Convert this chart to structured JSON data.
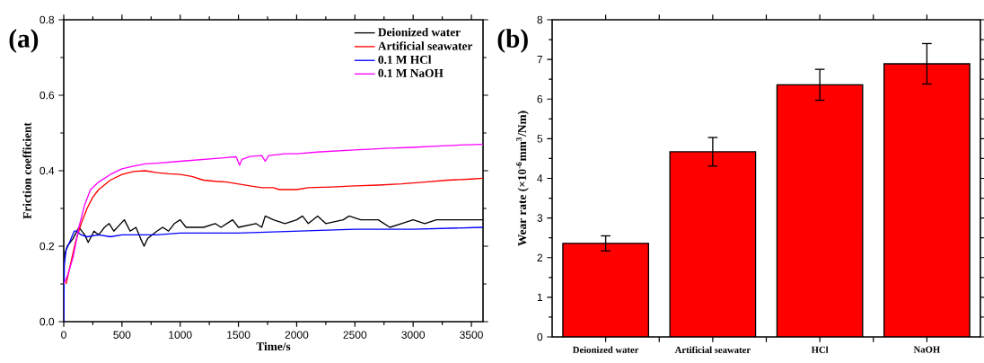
{
  "chart_data": [
    {
      "type": "line",
      "title": "(a)",
      "xlabel": "Time/s",
      "ylabel": "Friction coefficient",
      "xlim": [
        0,
        3600
      ],
      "ylim": [
        0,
        0.8
      ],
      "xticks": [
        0,
        500,
        1000,
        1500,
        2000,
        2500,
        3000,
        3500
      ],
      "yticks": [
        {
          "value": 0,
          "label": "0.0"
        },
        0.2,
        0.4,
        0.6,
        0.8
      ],
      "legend": "top right",
      "series": [
        {
          "name": "Deionized water",
          "color": "#000000",
          "x": [
            0,
            30,
            80,
            130,
            180,
            210,
            260,
            300,
            350,
            390,
            430,
            520,
            570,
            620,
            660,
            690,
            720,
            800,
            850,
            900,
            950,
            1000,
            1050,
            1100,
            1200,
            1300,
            1350,
            1450,
            1500,
            1650,
            1700,
            1730,
            1800,
            1900,
            2000,
            2050,
            2100,
            2180,
            2250,
            2400,
            2450,
            2550,
            2700,
            2800,
            2900,
            3000,
            3100,
            3200,
            3300,
            3400,
            3500,
            3600
          ],
          "values": [
            0.17,
            0.2,
            0.22,
            0.25,
            0.23,
            0.21,
            0.24,
            0.23,
            0.25,
            0.26,
            0.24,
            0.27,
            0.24,
            0.25,
            0.22,
            0.2,
            0.22,
            0.24,
            0.25,
            0.24,
            0.26,
            0.27,
            0.25,
            0.25,
            0.25,
            0.26,
            0.25,
            0.27,
            0.25,
            0.26,
            0.25,
            0.28,
            0.27,
            0.26,
            0.27,
            0.28,
            0.26,
            0.28,
            0.26,
            0.27,
            0.28,
            0.27,
            0.27,
            0.25,
            0.26,
            0.27,
            0.26,
            0.27,
            0.27,
            0.27,
            0.27,
            0.27
          ]
        },
        {
          "name": "Artificial seawater",
          "color": "#ff0000",
          "x": [
            20,
            100,
            150,
            200,
            250,
            300,
            400,
            500,
            600,
            700,
            800,
            900,
            1000,
            1100,
            1200,
            1300,
            1400,
            1500,
            1600,
            1700,
            1800,
            1850,
            1900,
            2000,
            2100,
            2300,
            2500,
            2700,
            2900,
            3100,
            3300,
            3500,
            3600
          ],
          "values": [
            0.1,
            0.21,
            0.26,
            0.3,
            0.33,
            0.35,
            0.375,
            0.39,
            0.398,
            0.4,
            0.395,
            0.392,
            0.39,
            0.385,
            0.375,
            0.372,
            0.37,
            0.365,
            0.36,
            0.355,
            0.355,
            0.35,
            0.35,
            0.35,
            0.355,
            0.357,
            0.36,
            0.362,
            0.365,
            0.37,
            0.375,
            0.378,
            0.38
          ]
        },
        {
          "name": "0.1 M HCl",
          "color": "#0000ff",
          "x": [
            0,
            5,
            20,
            50,
            90,
            110,
            150,
            200,
            300,
            400,
            500,
            600,
            800,
            1000,
            1500,
            2000,
            2500,
            3000,
            3600
          ],
          "values": [
            0.0,
            0.15,
            0.19,
            0.21,
            0.24,
            0.24,
            0.23,
            0.225,
            0.23,
            0.225,
            0.23,
            0.23,
            0.23,
            0.235,
            0.235,
            0.24,
            0.245,
            0.245,
            0.25
          ]
        },
        {
          "name": "0.1 M NaOH",
          "color": "#ff00ff",
          "x": [
            0,
            30,
            80,
            130,
            180,
            230,
            300,
            400,
            500,
            600,
            700,
            800,
            1000,
            1200,
            1400,
            1480,
            1510,
            1530,
            1600,
            1700,
            1730,
            1760,
            1900,
            2000,
            2200,
            2500,
            2800,
            3000,
            3200,
            3400,
            3600
          ],
          "values": [
            0.1,
            0.12,
            0.17,
            0.25,
            0.31,
            0.35,
            0.37,
            0.39,
            0.405,
            0.412,
            0.418,
            0.42,
            0.425,
            0.43,
            0.435,
            0.437,
            0.415,
            0.43,
            0.438,
            0.44,
            0.425,
            0.44,
            0.445,
            0.445,
            0.45,
            0.455,
            0.46,
            0.462,
            0.465,
            0.468,
            0.47
          ]
        }
      ]
    },
    {
      "type": "bar",
      "title": "(b)",
      "ylabel": "Wear rate (×10$^{-6}$mm$^{3}$/Nm)",
      "categories": [
        "Deionized water",
        "Artificial seawater",
        "HCl",
        "NaOH"
      ],
      "values": [
        2.36,
        4.67,
        6.36,
        6.89
      ],
      "errors": [
        0.19,
        0.36,
        0.39,
        0.51
      ],
      "color": "#ff0000",
      "ylim": [
        0,
        8
      ],
      "yticks": [
        0,
        1,
        2,
        3,
        4,
        5,
        6,
        7,
        8
      ]
    }
  ]
}
